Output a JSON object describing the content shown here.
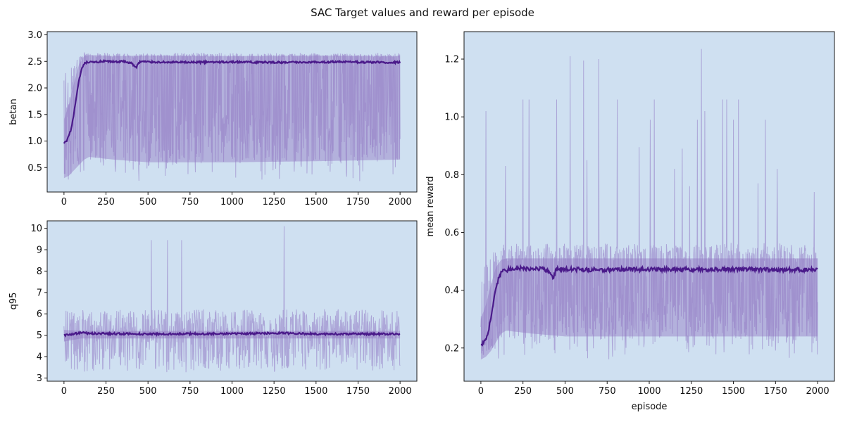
{
  "figure": {
    "title": "SAC Target values and reward per episode"
  },
  "colors": {
    "background": "#ffffff",
    "axes_face": "#cfe0f1",
    "axes_edge": "#1a1a1a",
    "mean_line": "#4a1a8a",
    "band_fill": "#9d8acb",
    "raw_line": "#8f77c2"
  },
  "chart_data": [
    {
      "type": "line",
      "title": "",
      "xlabel": "",
      "ylabel": "betan",
      "xlim": [
        -100,
        2100
      ],
      "ylim": [
        0.04,
        3.06
      ],
      "xticks": [
        0,
        250,
        500,
        750,
        1000,
        1250,
        1500,
        1750,
        2000
      ],
      "yticks": [
        0.5,
        1.0,
        1.5,
        2.0,
        2.5,
        3.0
      ],
      "ytick_labels": [
        "0.5",
        "1.0",
        "1.5",
        "2.0",
        "2.5",
        "3.0"
      ],
      "grid": false,
      "episodes": [
        0,
        2000
      ],
      "series": [
        {
          "role": "mean",
          "x": [
            0,
            15,
            30,
            45,
            60,
            75,
            90,
            105,
            120,
            135,
            150,
            200,
            250,
            300,
            350,
            400,
            430,
            445,
            460,
            500,
            700,
            1000,
            1300,
            1600,
            2000
          ],
          "y": [
            0.95,
            1.0,
            1.1,
            1.25,
            1.55,
            1.85,
            2.15,
            2.35,
            2.45,
            2.48,
            2.48,
            2.49,
            2.5,
            2.49,
            2.5,
            2.47,
            2.38,
            2.48,
            2.5,
            2.49,
            2.48,
            2.49,
            2.48,
            2.49,
            2.48
          ]
        },
        {
          "role": "upper_envelope",
          "x": [
            0,
            30,
            60,
            90,
            120,
            150,
            300,
            500,
            1000,
            1500,
            2000
          ],
          "y": [
            1.4,
            1.7,
            2.1,
            2.45,
            2.6,
            2.62,
            2.6,
            2.61,
            2.6,
            2.61,
            2.6
          ]
        },
        {
          "role": "lower_envelope",
          "x": [
            0,
            30,
            60,
            90,
            120,
            150,
            300,
            500,
            1000,
            1500,
            2000
          ],
          "y": [
            0.3,
            0.35,
            0.45,
            0.55,
            0.65,
            0.7,
            0.65,
            0.6,
            0.6,
            0.62,
            0.65
          ]
        },
        {
          "role": "raw",
          "value_range": [
            0.18,
            2.95
          ],
          "typical_low": [
            0.4,
            0.75
          ],
          "typical_high": [
            2.55,
            2.68
          ]
        }
      ]
    },
    {
      "type": "line",
      "title": "",
      "xlabel": "",
      "ylabel": "q95",
      "xlim": [
        -100,
        2100
      ],
      "ylim": [
        2.85,
        10.35
      ],
      "xticks": [
        0,
        250,
        500,
        750,
        1000,
        1250,
        1500,
        1750,
        2000
      ],
      "yticks": [
        3,
        4,
        5,
        6,
        7,
        8,
        9,
        10
      ],
      "ytick_labels": [
        "3",
        "4",
        "5",
        "6",
        "7",
        "8",
        "9",
        "10"
      ],
      "grid": false,
      "episodes": [
        0,
        2000
      ],
      "series": [
        {
          "role": "mean",
          "x": [
            0,
            50,
            100,
            150,
            300,
            500,
            1000,
            1300,
            1500,
            2000
          ],
          "y": [
            5.0,
            5.05,
            5.12,
            5.08,
            5.07,
            5.06,
            5.07,
            5.1,
            5.06,
            5.06
          ]
        },
        {
          "role": "upper_envelope",
          "x": [
            0,
            100,
            500,
            1000,
            1500,
            2000
          ],
          "y": [
            5.25,
            5.2,
            5.2,
            5.2,
            5.2,
            5.2
          ]
        },
        {
          "role": "lower_envelope",
          "x": [
            0,
            100,
            500,
            1000,
            1500,
            2000
          ],
          "y": [
            4.7,
            4.85,
            4.85,
            4.85,
            4.85,
            4.85
          ]
        },
        {
          "role": "raw",
          "value_range": [
            3.05,
            10.1
          ],
          "typical_low": [
            4.0,
            4.8
          ],
          "typical_high": [
            5.4,
            6.5
          ],
          "spikes": [
            {
              "x": 520,
              "y": 9.45
            },
            {
              "x": 615,
              "y": 9.45
            },
            {
              "x": 700,
              "y": 9.45
            },
            {
              "x": 1310,
              "y": 10.1
            }
          ]
        }
      ]
    },
    {
      "type": "line",
      "title": "",
      "xlabel": "episode",
      "ylabel": "mean reward",
      "xlim": [
        -100,
        2100
      ],
      "ylim": [
        0.085,
        1.295
      ],
      "xticks": [
        0,
        250,
        500,
        750,
        1000,
        1250,
        1500,
        1750,
        2000
      ],
      "yticks": [
        0.2,
        0.4,
        0.6,
        0.8,
        1.0,
        1.2
      ],
      "ytick_labels": [
        "0.2",
        "0.4",
        "0.6",
        "0.8",
        "1.0",
        "1.2"
      ],
      "grid": false,
      "episodes": [
        0,
        2000
      ],
      "series": [
        {
          "role": "mean",
          "x": [
            0,
            15,
            30,
            45,
            60,
            75,
            90,
            105,
            120,
            135,
            150,
            200,
            250,
            300,
            350,
            400,
            430,
            445,
            460,
            500,
            700,
            1000,
            1300,
            1600,
            2000
          ],
          "y": [
            0.21,
            0.215,
            0.23,
            0.26,
            0.31,
            0.36,
            0.41,
            0.44,
            0.46,
            0.47,
            0.47,
            0.475,
            0.475,
            0.473,
            0.475,
            0.468,
            0.445,
            0.468,
            0.475,
            0.472,
            0.471,
            0.472,
            0.472,
            0.472,
            0.47
          ]
        },
        {
          "role": "upper_envelope",
          "x": [
            0,
            30,
            60,
            90,
            120,
            150,
            300,
            500,
            1000,
            1500,
            2000
          ],
          "y": [
            0.3,
            0.35,
            0.42,
            0.48,
            0.505,
            0.51,
            0.51,
            0.51,
            0.51,
            0.51,
            0.51
          ]
        },
        {
          "role": "lower_envelope",
          "x": [
            0,
            30,
            60,
            90,
            120,
            150,
            300,
            500,
            1000,
            1500,
            2000
          ],
          "y": [
            0.16,
            0.17,
            0.19,
            0.22,
            0.25,
            0.26,
            0.25,
            0.24,
            0.24,
            0.24,
            0.24
          ]
        },
        {
          "role": "raw",
          "value_range": [
            0.145,
            1.235
          ],
          "typical_low": [
            0.15,
            0.3
          ],
          "typical_high": [
            0.5,
            0.58
          ],
          "spikes": [
            {
              "x": 30,
              "y": 1.02
            },
            {
              "x": 85,
              "y": 0.53
            },
            {
              "x": 145,
              "y": 0.83
            },
            {
              "x": 250,
              "y": 1.06
            },
            {
              "x": 285,
              "y": 1.06
            },
            {
              "x": 450,
              "y": 1.06
            },
            {
              "x": 530,
              "y": 1.21
            },
            {
              "x": 610,
              "y": 1.195
            },
            {
              "x": 630,
              "y": 0.85
            },
            {
              "x": 700,
              "y": 1.2
            },
            {
              "x": 810,
              "y": 1.06
            },
            {
              "x": 940,
              "y": 0.895
            },
            {
              "x": 1005,
              "y": 0.99
            },
            {
              "x": 1030,
              "y": 1.06
            },
            {
              "x": 1150,
              "y": 0.82
            },
            {
              "x": 1195,
              "y": 0.89
            },
            {
              "x": 1240,
              "y": 0.76
            },
            {
              "x": 1285,
              "y": 0.99
            },
            {
              "x": 1310,
              "y": 1.235
            },
            {
              "x": 1330,
              "y": 1.02
            },
            {
              "x": 1435,
              "y": 1.06
            },
            {
              "x": 1460,
              "y": 1.06
            },
            {
              "x": 1500,
              "y": 0.99
            },
            {
              "x": 1530,
              "y": 1.06
            },
            {
              "x": 1645,
              "y": 0.77
            },
            {
              "x": 1690,
              "y": 0.99
            },
            {
              "x": 1760,
              "y": 0.82
            },
            {
              "x": 1980,
              "y": 0.74
            }
          ]
        }
      ]
    }
  ]
}
